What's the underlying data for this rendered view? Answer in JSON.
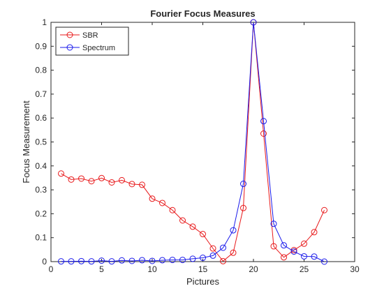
{
  "chart_data": {
    "type": "line",
    "title": "Fourier Focus Measures",
    "xlabel": "Pictures",
    "ylabel": "Focus Measurement",
    "xlim": [
      0,
      30
    ],
    "ylim": [
      0,
      1
    ],
    "xticks": [
      0,
      5,
      10,
      15,
      20,
      25,
      30
    ],
    "yticks": [
      0,
      0.1,
      0.2,
      0.3,
      0.4,
      0.5,
      0.6,
      0.7,
      0.8,
      0.9,
      1
    ],
    "grid": false,
    "legend_position": "top-left",
    "x": [
      1,
      2,
      3,
      4,
      5,
      6,
      7,
      8,
      9,
      10,
      11,
      12,
      13,
      14,
      15,
      16,
      17,
      18,
      19,
      20,
      21,
      22,
      23,
      24,
      25,
      26,
      27
    ],
    "series": [
      {
        "name": "SBR",
        "color": "#e8191b",
        "marker": "circle",
        "values": [
          0.368,
          0.343,
          0.347,
          0.336,
          0.349,
          0.331,
          0.34,
          0.324,
          0.321,
          0.263,
          0.245,
          0.215,
          0.172,
          0.146,
          0.115,
          0.055,
          0.002,
          0.037,
          0.224,
          1.0,
          0.535,
          0.064,
          0.018,
          0.048,
          0.075,
          0.123,
          0.215
        ]
      },
      {
        "name": "Spectrum",
        "color": "#1a1aeb",
        "marker": "circle",
        "values": [
          0.001,
          0.001,
          0.002,
          0.001,
          0.004,
          0.001,
          0.005,
          0.003,
          0.006,
          0.003,
          0.006,
          0.007,
          0.007,
          0.012,
          0.016,
          0.025,
          0.058,
          0.131,
          0.325,
          1.0,
          0.587,
          0.158,
          0.068,
          0.042,
          0.022,
          0.021,
          0.0
        ]
      }
    ]
  }
}
